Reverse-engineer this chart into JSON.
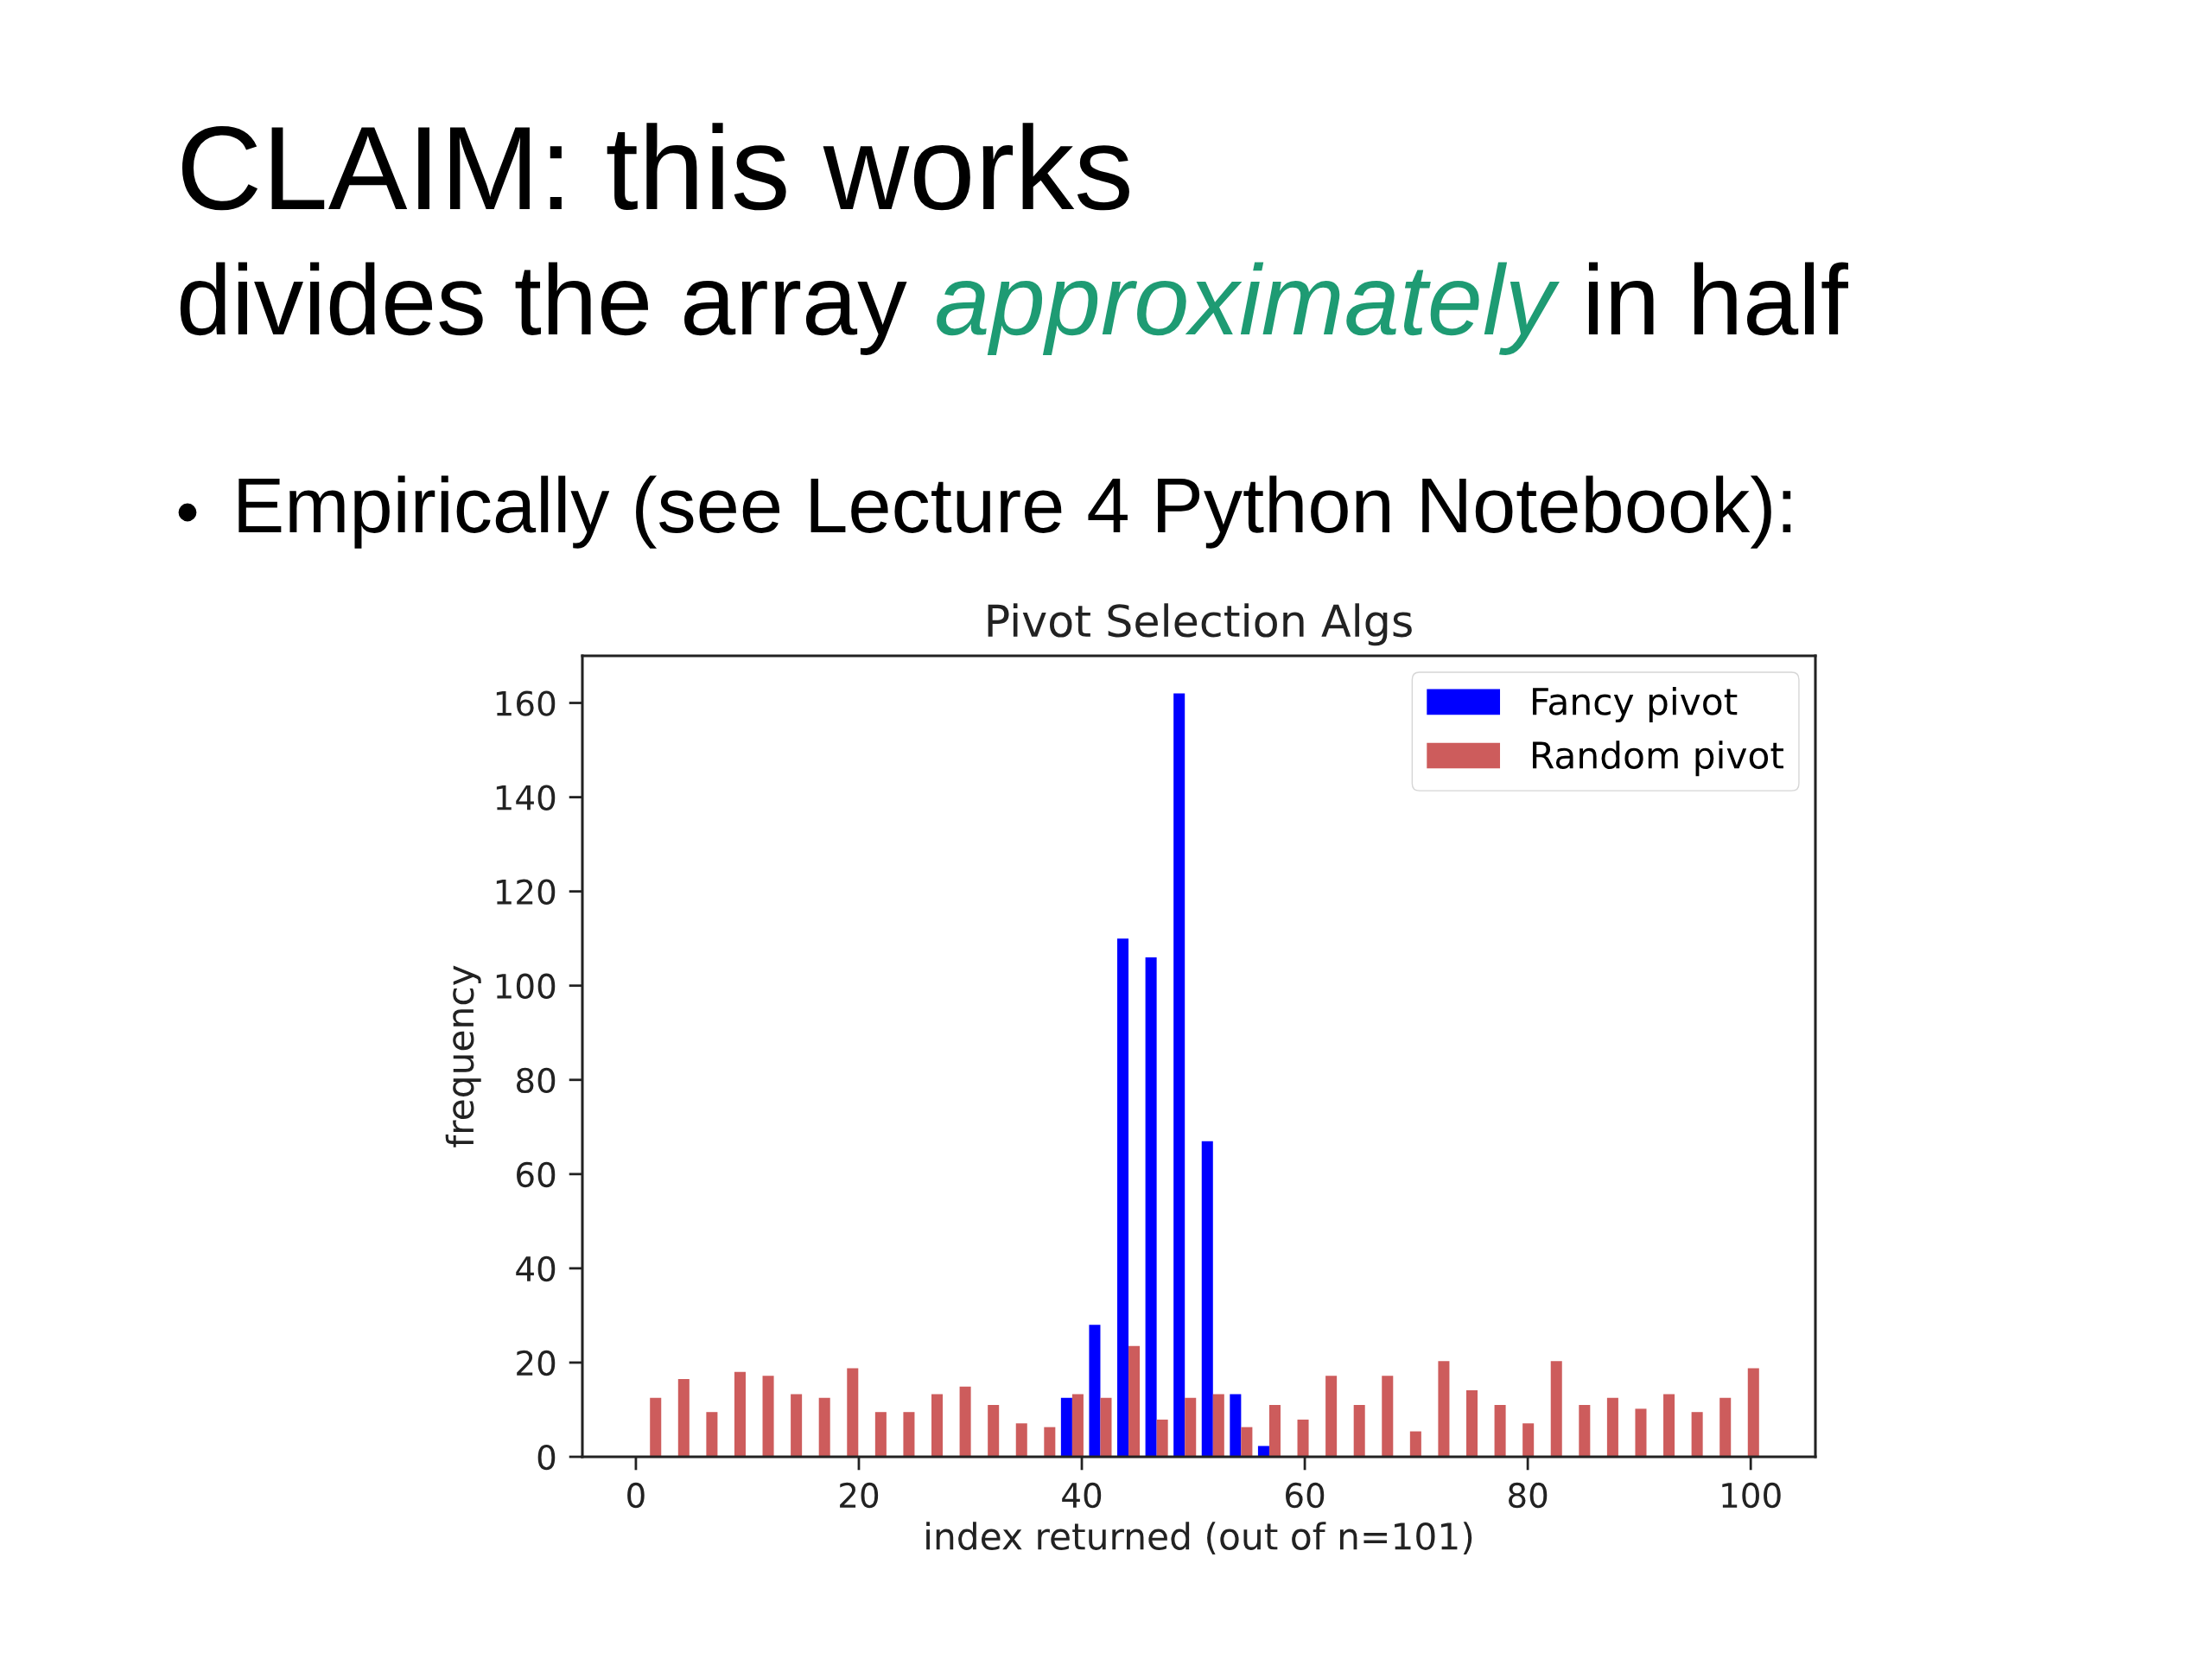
{
  "chart_data": {
    "type": "histogram",
    "title": "Pivot Selection Algs",
    "xlabel": "index returned (out of n=101)",
    "ylabel": "frequency",
    "annotations": [
      "CLAIM: this works",
      "divides the array",
      "approximately",
      "in half",
      "Empirically (see Lecture 4 Python Notebook):"
    ],
    "bins": [
      0,
      2.525,
      5.05,
      7.575,
      10.1,
      12.625,
      15.15,
      17.675,
      20.2,
      22.725,
      25.25,
      27.775,
      30.3,
      32.825,
      35.35,
      37.875,
      40.4,
      42.925,
      45.45,
      47.975,
      50.5,
      53.025,
      55.55,
      58.075,
      60.6,
      63.125,
      65.65,
      68.175,
      70.7,
      73.225,
      75.75,
      78.275,
      80.8,
      83.325,
      85.85,
      88.375,
      90.9,
      93.425,
      95.95,
      98.475,
      101
    ],
    "series": [
      {
        "name": "Fancy pivot",
        "color": "#0000ff",
        "values": [
          0,
          0,
          0,
          0,
          0,
          0,
          0,
          0,
          0,
          0,
          0,
          0,
          0,
          0,
          0,
          12.5,
          28,
          110,
          106,
          162,
          67,
          13.3,
          2.3,
          0,
          0,
          0,
          0,
          0,
          0,
          0,
          0,
          0,
          0,
          0,
          0,
          0,
          0,
          0,
          0,
          0
        ]
      },
      {
        "name": "Random pivot",
        "color": "#cd5c5c",
        "values": [
          12.5,
          16.5,
          9.5,
          18,
          17.2,
          13.3,
          12.5,
          18.8,
          9.5,
          9.5,
          13.3,
          14.9,
          11,
          7.1,
          6.3,
          13.3,
          12.5,
          23.5,
          7.9,
          12.5,
          13.3,
          6.3,
          11,
          7.9,
          17.2,
          11,
          17.2,
          5.4,
          20.3,
          14.1,
          11,
          7.1,
          20.3,
          11,
          12.5,
          10.2,
          13.3,
          9.5,
          12.5,
          18.8
        ]
      }
    ],
    "xlim": [
      -4.8,
      105.8
    ],
    "ylim": [
      0,
      170
    ],
    "xticks": [
      0,
      20,
      40,
      60,
      80,
      100
    ],
    "yticks": [
      0,
      20,
      40,
      60,
      80,
      100,
      120,
      140,
      160
    ],
    "legend": "top right"
  }
}
